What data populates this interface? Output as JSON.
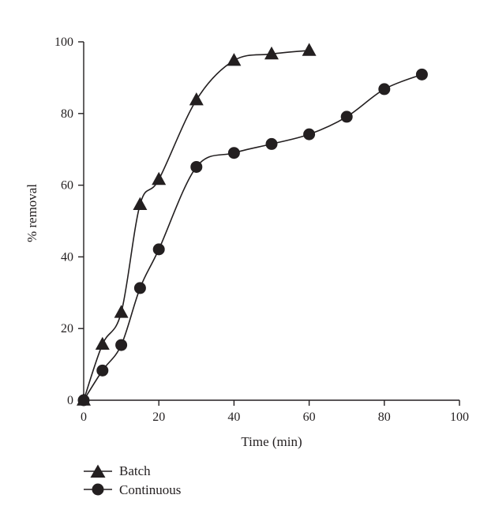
{
  "chart_data": {
    "type": "line",
    "xlabel": "Time (min)",
    "ylabel": "% removal",
    "xlim": [
      0,
      100
    ],
    "ylim": [
      0,
      100
    ],
    "xticks": [
      0,
      20,
      40,
      60,
      80,
      100
    ],
    "yticks": [
      0,
      20,
      40,
      60,
      80,
      100
    ],
    "grid": false,
    "legend_position": "bottom-left",
    "series": [
      {
        "name": "Batch",
        "marker": "triangle",
        "x": [
          0,
          5,
          10,
          15,
          20,
          30,
          40,
          50,
          60
        ],
        "y": [
          0,
          15.6,
          24.5,
          54.6,
          61.6,
          83.8,
          94.8,
          96.6,
          97.6
        ]
      },
      {
        "name": "Continuous",
        "marker": "circle",
        "x": [
          0,
          5,
          10,
          15,
          20,
          30,
          40,
          50,
          60,
          70,
          80,
          90
        ],
        "y": [
          0,
          8.3,
          15.4,
          31.3,
          42.1,
          65.1,
          69.0,
          71.5,
          74.2,
          79.1,
          86.8,
          90.9
        ]
      }
    ]
  }
}
